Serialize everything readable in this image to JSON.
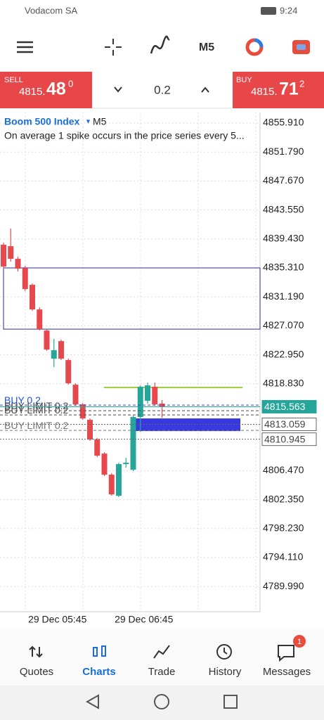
{
  "status_bar": {
    "carrier": "Vodacom SA",
    "time": "9:24"
  },
  "toolbar": {
    "timeframe": "M5"
  },
  "trade_panel": {
    "sell": {
      "label": "SELL",
      "price_main": "4815.",
      "price_big": "48",
      "price_sup": "0"
    },
    "volume": "0.2",
    "buy": {
      "label": "BUY",
      "price_main": "4815.",
      "price_big": "71",
      "price_sup": "2"
    }
  },
  "chart_data": {
    "type": "candlestick",
    "title": "Boom 500 Index",
    "timeframe": "M5",
    "subtitle": "On average 1 spike occurs in the price series every 5...",
    "categories": [
      null,
      null,
      null,
      null,
      null,
      null,
      null,
      "29 Dec 05:45",
      null,
      null,
      null,
      null,
      null,
      null,
      null,
      null,
      null,
      null,
      null,
      "29 Dec 06:45",
      null,
      null,
      null
    ],
    "open": [
      4838.6,
      4838.4,
      4836.6,
      4835.3,
      4832.9,
      4829.4,
      4826.4,
      4822.4,
      4824.9,
      4822.2,
      4818.7,
      4815.9,
      4813.7,
      4810.9,
      4808.9,
      4805.9,
      4802.9,
      4807.4,
      4806.6,
      4814.1,
      4816.4,
      4818.4,
      4816.0
    ],
    "high": [
      4838.9,
      4840.9,
      4836.9,
      4835.6,
      4833.1,
      4829.7,
      4826.6,
      4825.2,
      4825.1,
      4822.4,
      4818.9,
      4816.1,
      4813.9,
      4811.1,
      4809.1,
      4806.1,
      4807.6,
      4808.3,
      4814.3,
      4818.6,
      4819.0,
      4819.0,
      4816.5
    ],
    "low": [
      4835.2,
      4836.2,
      4834.8,
      4832.0,
      4829.2,
      4826.4,
      4823.5,
      4821.2,
      4822.2,
      4818.7,
      4815.7,
      4813.7,
      4810.7,
      4808.4,
      4805.7,
      4802.9,
      4802.7,
      4806.9,
      4806.4,
      4812.0,
      4816.0,
      4815.7,
      4814.0
    ],
    "close": [
      4835.5,
      4836.6,
      4835.2,
      4832.3,
      4829.4,
      4826.6,
      4823.7,
      4823.6,
      4822.4,
      4818.9,
      4815.9,
      4813.9,
      4810.9,
      4808.6,
      4805.9,
      4803.1,
      4807.4,
      4807.6,
      4814.1,
      4818.4,
      4818.6,
      4815.9,
      4815.6
    ],
    "up_color": "#26a69a",
    "down_color": "#e5484d",
    "ylim": [
      4786.41,
      4857.41
    ],
    "yticks": [
      {
        "value": 4855.91,
        "label": "4855.910"
      },
      {
        "value": 4851.79,
        "label": "4851.790"
      },
      {
        "value": 4847.67,
        "label": "4847.670"
      },
      {
        "value": 4843.55,
        "label": "4843.550"
      },
      {
        "value": 4839.43,
        "label": "4839.430"
      },
      {
        "value": 4835.31,
        "label": "4835.310"
      },
      {
        "value": 4831.19,
        "label": "4831.190"
      },
      {
        "value": 4827.07,
        "label": "4827.070"
      },
      {
        "value": 4822.95,
        "label": "4822.950"
      },
      {
        "value": 4818.83,
        "label": "4818.830"
      },
      {
        "value": 4806.47,
        "label": "4806.470"
      },
      {
        "value": 4802.35,
        "label": "4802.350"
      },
      {
        "value": 4798.23,
        "label": "4798.230"
      },
      {
        "value": 4794.11,
        "label": "4794.110"
      },
      {
        "value": 4789.99,
        "label": "4789.990"
      }
    ],
    "grid": true,
    "levels": [
      {
        "label": "BUY 0.2",
        "value": 4815.8,
        "color": "#1e50d8"
      },
      {
        "label": "BUY LIMIT 0.2",
        "value": 4815.0,
        "color": "#4a4a4a"
      },
      {
        "label": "BUY LIMIT 0.2",
        "value": 4814.4,
        "color": "#4a4a4a"
      },
      {
        "label": "BUY LIMIT 0.2",
        "value": 4812.2,
        "color": "#777777"
      }
    ],
    "price_boxes": [
      {
        "value": 4815.563,
        "color": "#26a69a"
      },
      {
        "value": 4813.059,
        "color": "#666666"
      },
      {
        "value": 4810.945,
        "color": "#666666"
      }
    ],
    "rectangle": {
      "top": 4835.31,
      "bottom": 4826.6,
      "color": "#2b2b9a"
    },
    "trend_line": {
      "value": 4818.3,
      "color": "#9acd32"
    },
    "filled_rectangle": {
      "top": 4813.9,
      "bottom": 4812.1,
      "color": "#2222dd"
    }
  },
  "bottom_nav": {
    "items": [
      "Quotes",
      "Charts",
      "Trade",
      "History",
      "Messages"
    ],
    "badge": "1"
  }
}
